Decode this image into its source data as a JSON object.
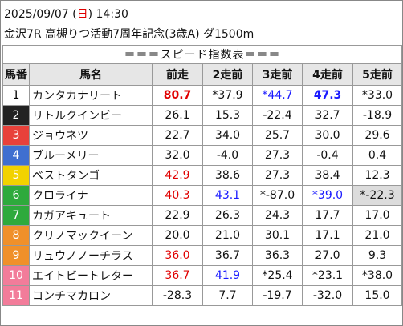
{
  "header": {
    "date_parts": [
      {
        "text": "2025/09/07 ("
      },
      {
        "text": "日",
        "color": "#e00000"
      },
      {
        "text": ") 14:30"
      }
    ],
    "race": "金沢7R 高槻りつ活動7周年記念(3歳A) ダ1500m"
  },
  "table": {
    "banner": "＝＝＝スピード指数表＝＝＝",
    "columns": [
      "馬番",
      "馬名",
      "前走",
      "2走前",
      "3走前",
      "4走前",
      "5走前"
    ],
    "rows": [
      {
        "num": "1",
        "num_bg": "#ffffff",
        "num_color": "#000000",
        "name": "カンタカナリート",
        "cells": [
          {
            "text": "80.7",
            "color": "#e00000",
            "bold": true
          },
          {
            "text": "*37.9"
          },
          {
            "text": "*44.7",
            "color": "#1a1aff"
          },
          {
            "text": "47.3",
            "color": "#1a1aff",
            "bold": true
          },
          {
            "text": "*33.0"
          }
        ]
      },
      {
        "num": "2",
        "num_bg": "#222222",
        "num_color": "#ffffff",
        "name": "リトルクインビー",
        "cells": [
          {
            "text": "26.1"
          },
          {
            "text": "15.3"
          },
          {
            "text": "-22.4"
          },
          {
            "text": "32.7"
          },
          {
            "text": "-18.9"
          }
        ]
      },
      {
        "num": "3",
        "num_bg": "#e8413a",
        "num_color": "#ffffff",
        "name": "ジョウネツ",
        "cells": [
          {
            "text": "22.7"
          },
          {
            "text": "34.0"
          },
          {
            "text": "25.7"
          },
          {
            "text": "30.0"
          },
          {
            "text": "29.6"
          }
        ]
      },
      {
        "num": "4",
        "num_bg": "#3f6fd0",
        "num_color": "#ffffff",
        "name": "ブルーメリー",
        "cells": [
          {
            "text": "32.0"
          },
          {
            "text": "-4.0"
          },
          {
            "text": "27.3"
          },
          {
            "text": "-0.4"
          },
          {
            "text": "0.4"
          }
        ]
      },
      {
        "num": "5",
        "num_bg": "#f2d200",
        "num_color": "#ffffff",
        "name": "ベストタンゴ",
        "cells": [
          {
            "text": "42.9",
            "color": "#e00000"
          },
          {
            "text": "38.6"
          },
          {
            "text": "27.3"
          },
          {
            "text": "38.4"
          },
          {
            "text": "12.3"
          }
        ]
      },
      {
        "num": "6",
        "num_bg": "#2eaa3c",
        "num_color": "#ffffff",
        "name": "クロライナ",
        "cells": [
          {
            "text": "40.3",
            "color": "#e00000"
          },
          {
            "text": "43.1",
            "color": "#1a1aff"
          },
          {
            "text": "*-87.0"
          },
          {
            "text": "*39.0",
            "color": "#1a1aff"
          },
          {
            "text": "*-22.3",
            "bg": "#dcdcdc"
          }
        ]
      },
      {
        "num": "7",
        "num_bg": "#2eaa3c",
        "num_color": "#ffffff",
        "name": "カガアキュート",
        "cells": [
          {
            "text": "22.9"
          },
          {
            "text": "26.3"
          },
          {
            "text": "24.3"
          },
          {
            "text": "17.7"
          },
          {
            "text": "17.0"
          }
        ]
      },
      {
        "num": "8",
        "num_bg": "#f0902a",
        "num_color": "#ffffff",
        "name": "クリノマックイーン",
        "cells": [
          {
            "text": "20.0"
          },
          {
            "text": "21.0"
          },
          {
            "text": "30.1"
          },
          {
            "text": "17.1"
          },
          {
            "text": "21.0"
          }
        ]
      },
      {
        "num": "9",
        "num_bg": "#f0902a",
        "num_color": "#ffffff",
        "name": "リュウノノーチラス",
        "cells": [
          {
            "text": "36.0",
            "color": "#e00000"
          },
          {
            "text": "36.7"
          },
          {
            "text": "36.3"
          },
          {
            "text": "27.0"
          },
          {
            "text": "9.3"
          }
        ]
      },
      {
        "num": "10",
        "num_bg": "#f27c9a",
        "num_color": "#ffffff",
        "name": "エイトビートレター",
        "cells": [
          {
            "text": "36.7",
            "color": "#e00000"
          },
          {
            "text": "41.9",
            "color": "#1a1aff"
          },
          {
            "text": "*25.4"
          },
          {
            "text": "*23.1"
          },
          {
            "text": "*38.0"
          }
        ]
      },
      {
        "num": "11",
        "num_bg": "#f27c9a",
        "num_color": "#ffffff",
        "name": "コンチマカロン",
        "cells": [
          {
            "text": "-28.3"
          },
          {
            "text": "7.7"
          },
          {
            "text": "-19.7"
          },
          {
            "text": "-32.0"
          },
          {
            "text": "15.0"
          }
        ]
      }
    ]
  }
}
